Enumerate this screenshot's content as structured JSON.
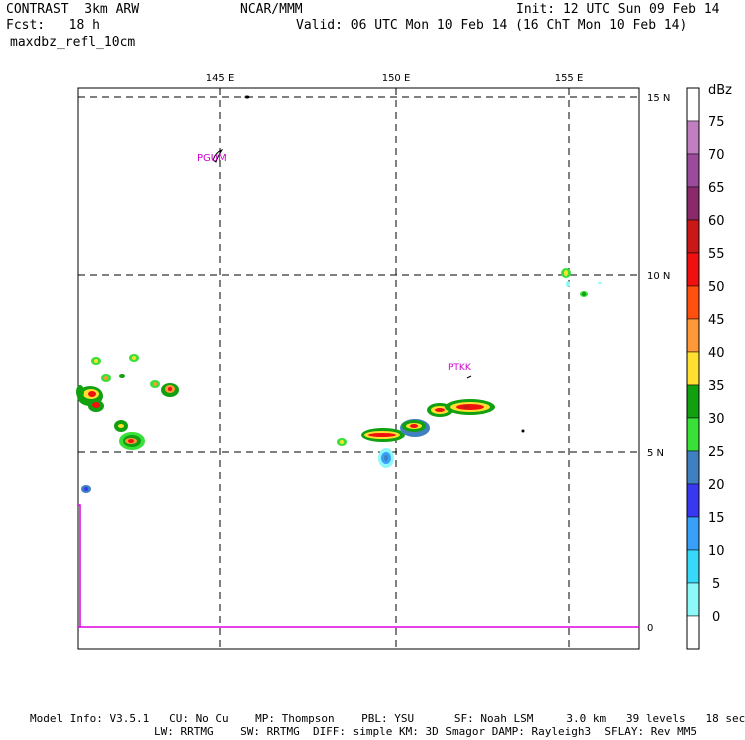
{
  "header": {
    "model": "CONTRAST  3km ARW",
    "org": "NCAR/MMM",
    "init": "Init: 12 UTC Sun 09 Feb 14",
    "fcst": "Fcst:   18 h",
    "valid": "Valid: 06 UTC Mon 10 Feb 14 (16 ChT Mon 10 Feb 14)",
    "field": "maxdbz_refl_10cm"
  },
  "map": {
    "lon_labels": [
      "145 E",
      "150 E",
      "155 E"
    ],
    "lat_labels": [
      "15 N",
      "10 N",
      "5 N",
      "0"
    ],
    "stations": [
      "PGUM",
      "PTKK"
    ],
    "boundary_color": "#e000e0",
    "grid": true
  },
  "colorbar": {
    "unit": "dBz",
    "levels": [
      "75",
      "70",
      "65",
      "60",
      "55",
      "50",
      "45",
      "40",
      "35",
      "30",
      "25",
      "20",
      "15",
      "10",
      "5",
      "0"
    ],
    "colors": [
      "#c080c0",
      "#9a4c9a",
      "#8b2a6a",
      "#a83030",
      "#c81818",
      "#f01010",
      "#ff5010",
      "#ff9838",
      "#ffe030",
      "#10a010",
      "#38e038",
      "#4080c0",
      "#3838f0",
      "#38a0f8",
      "#38d8f8",
      "#8ef8f8",
      "#ffffff"
    ]
  },
  "footer": {
    "line1": "Model Info: V3.5.1   CU: No Cu    MP: Thompson    PBL: YSU      SF: Noah LSM     3.0 km   39 levels   18 sec",
    "line2": "LW: RRTMG    SW: RRTMG  DIFF: simple KM: 3D Smagor DAMP: Rayleigh3  SFLAY: Rev MM5"
  }
}
